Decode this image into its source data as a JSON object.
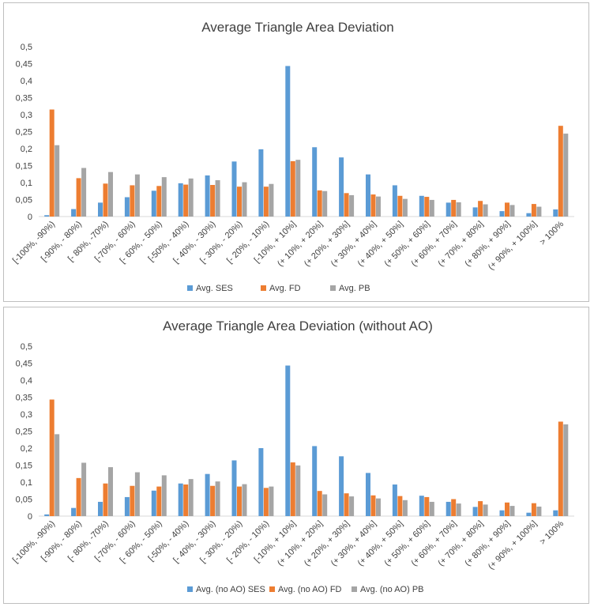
{
  "chart_data": [
    {
      "type": "bar",
      "title": "Average Triangle Area Deviation",
      "xlabel": "",
      "ylabel": "",
      "ylim": [
        0,
        0.5
      ],
      "yticks": [
        "0",
        "0,05",
        "0,1",
        "0,15",
        "0,2",
        "0,25",
        "0,3",
        "0,35",
        "0,4",
        "0,45",
        "0,5"
      ],
      "grid": false,
      "legend_position": "bottom",
      "categories": [
        "[-100%, -90%)",
        "[-90%, - 80%)",
        "[- 80%, -70%)",
        "[-70%, - 60%)",
        "[- 60%, - 50%)",
        "[-50%, - 40%)",
        "[- 40%, - 30%)",
        "[- 30%, - 20%)",
        "[- 20%, - 10%)",
        "[-10%, + 10%]",
        "(+ 10%, + 20%]",
        "(+ 20%, + 30%]",
        "(+ 30%, + 40%]",
        "(+ 40%, + 50%]",
        "(+ 50%, + 60%]",
        "(+ 60%, + 70%]",
        "(+ 70%, + 80%]",
        "(+ 80%, + 90%]",
        "(+ 90%, + 100%]",
        "> 100%"
      ],
      "series": [
        {
          "name": "Avg. SES",
          "color": "#5b9bd5",
          "values": [
            0.004,
            0.022,
            0.041,
            0.057,
            0.076,
            0.098,
            0.121,
            0.162,
            0.198,
            0.443,
            0.204,
            0.174,
            0.124,
            0.092,
            0.061,
            0.041,
            0.027,
            0.016,
            0.01,
            0.021
          ]
        },
        {
          "name": "Avg. FD",
          "color": "#ed7d31",
          "values": [
            0.315,
            0.113,
            0.097,
            0.092,
            0.09,
            0.094,
            0.093,
            0.088,
            0.088,
            0.163,
            0.077,
            0.069,
            0.065,
            0.061,
            0.058,
            0.049,
            0.046,
            0.041,
            0.037,
            0.267
          ]
        },
        {
          "name": "Avg. PB",
          "color": "#a5a5a5",
          "values": [
            0.21,
            0.143,
            0.131,
            0.124,
            0.116,
            0.112,
            0.107,
            0.101,
            0.096,
            0.167,
            0.075,
            0.063,
            0.059,
            0.052,
            0.049,
            0.042,
            0.036,
            0.034,
            0.029,
            0.244
          ]
        }
      ]
    },
    {
      "type": "bar",
      "title": "Average Triangle Area Deviation (without AO)",
      "xlabel": "",
      "ylabel": "",
      "ylim": [
        0,
        0.5
      ],
      "yticks": [
        "0",
        "0,05",
        "0,1",
        "0,15",
        "0,2",
        "0,25",
        "0,3",
        "0,35",
        "0,4",
        "0,45",
        "0,5"
      ],
      "grid": false,
      "legend_position": "bottom",
      "categories": [
        "[-100%, -90%)",
        "[-90%, - 80%)",
        "[- 80%, -70%)",
        "[-70%, - 60%)",
        "[- 60%, - 50%)",
        "[-50%, - 40%)",
        "[- 40%, - 30%)",
        "[- 30%, - 20%)",
        "[- 20%, - 10%)",
        "[-10%, + 10%]",
        "(+ 10%, + 20%]",
        "(+ 20%, + 30%]",
        "(+ 30%, + 40%]",
        "(+ 40%, + 50%]",
        "(+ 50%, + 60%]",
        "(+ 60%, + 70%]",
        "(+ 70%, + 80%]",
        "(+ 80%, + 90%]",
        "(+ 90%, + 100%]",
        "> 100%"
      ],
      "series": [
        {
          "name": "Avg. (no AO) SES",
          "color": "#5b9bd5",
          "values": [
            0.005,
            0.024,
            0.042,
            0.056,
            0.075,
            0.096,
            0.124,
            0.164,
            0.2,
            0.443,
            0.206,
            0.176,
            0.127,
            0.093,
            0.06,
            0.042,
            0.027,
            0.017,
            0.01,
            0.017
          ]
        },
        {
          "name": "Avg. (no AO) FD",
          "color": "#ed7d31",
          "values": [
            0.343,
            0.112,
            0.096,
            0.089,
            0.087,
            0.093,
            0.089,
            0.087,
            0.083,
            0.158,
            0.074,
            0.067,
            0.061,
            0.059,
            0.056,
            0.05,
            0.044,
            0.04,
            0.038,
            0.278
          ]
        },
        {
          "name": "Avg. (no AO) PB",
          "color": "#a5a5a5",
          "values": [
            0.241,
            0.157,
            0.144,
            0.129,
            0.12,
            0.109,
            0.102,
            0.094,
            0.087,
            0.149,
            0.064,
            0.058,
            0.052,
            0.047,
            0.042,
            0.037,
            0.034,
            0.03,
            0.028,
            0.27
          ]
        }
      ]
    }
  ]
}
